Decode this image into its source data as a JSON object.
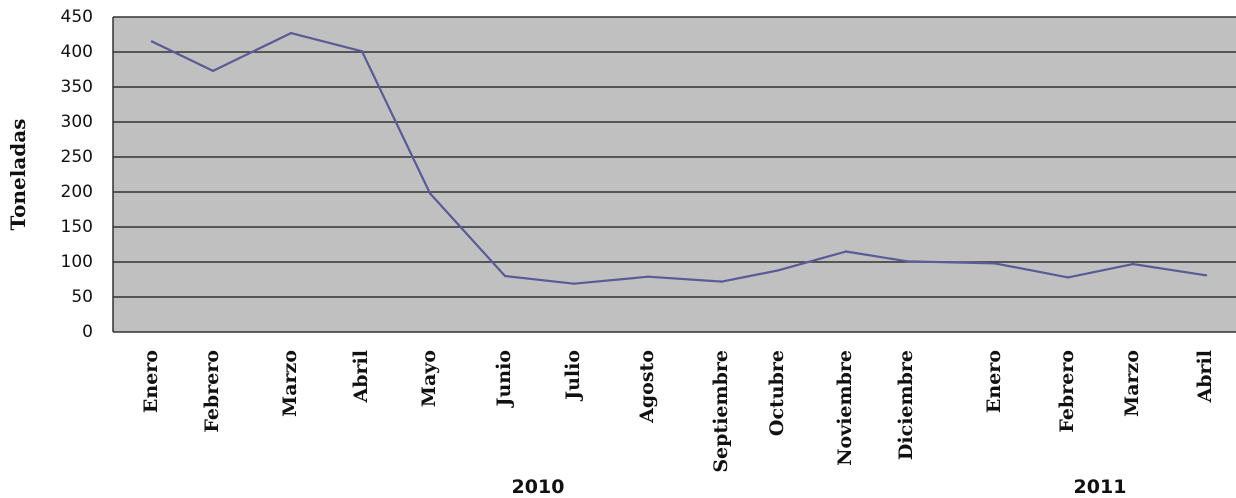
{
  "chart_data": {
    "type": "line",
    "title": "",
    "ylabel": "Toneladas",
    "xlabel": "",
    "ylim": [
      0,
      450
    ],
    "y_ticks": [
      "0",
      "50",
      "100",
      "150",
      "200",
      "250",
      "300",
      "350",
      "400",
      "450"
    ],
    "grid": "horizontal",
    "legend": "none",
    "categories": [
      "Enero",
      "Febrero",
      "Marzo",
      "Abril",
      "Mayo",
      "Junio",
      "Julio",
      "Agosto",
      "Septiembre",
      "Octubre",
      "Noviembre",
      "Diciembre",
      "Enero",
      "Febrero",
      "Marzo",
      "Abril"
    ],
    "series": [
      {
        "values": [
          415,
          373,
          427,
          401,
          198,
          80,
          69,
          79,
          72,
          88,
          115,
          101,
          98,
          78,
          97,
          81
        ]
      }
    ],
    "year_groups": [
      {
        "label": "2010",
        "start": 0,
        "end": 11
      },
      {
        "label": "2011",
        "start": 12,
        "end": 15
      }
    ],
    "colors": {
      "plot_background": "#c0c0c0",
      "gridline": "#333333",
      "line": "#5b5a96",
      "axis": "#333333"
    }
  }
}
